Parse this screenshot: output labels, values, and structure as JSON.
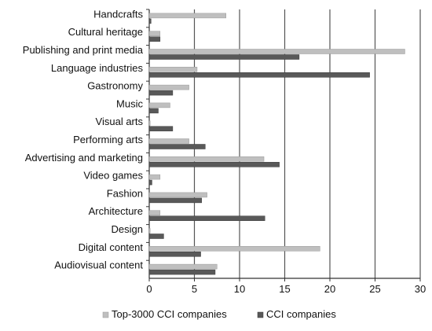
{
  "chart_data": {
    "type": "bar",
    "orientation": "horizontal",
    "categories": [
      "Handcrafts",
      "Cultural heritage",
      "Publishing and print media",
      "Language industries",
      "Gastronomy",
      "Music",
      "Visual arts",
      "Performing arts",
      "Advertising and marketing",
      "Video games",
      "Fashion",
      "Architecture",
      "Design",
      "Digital content",
      "Audiovisual content"
    ],
    "series": [
      {
        "name": "Top-3000 CCI companies",
        "color": "#bfbfbf",
        "values": [
          8.5,
          1.2,
          28.3,
          5.3,
          4.4,
          2.3,
          0.1,
          4.4,
          12.7,
          1.2,
          6.4,
          1.2,
          0.1,
          18.9,
          7.5
        ]
      },
      {
        "name": "CCI companies",
        "color": "#595959",
        "values": [
          0.2,
          1.2,
          16.6,
          24.4,
          2.6,
          1.0,
          2.6,
          6.2,
          14.4,
          0.3,
          5.8,
          12.8,
          1.6,
          5.7,
          7.3
        ]
      }
    ],
    "xlim": [
      0,
      30
    ],
    "x_ticks": [
      "0",
      "5",
      "10",
      "15",
      "20",
      "25",
      "30"
    ],
    "grid": true,
    "legend_position": "bottom"
  }
}
